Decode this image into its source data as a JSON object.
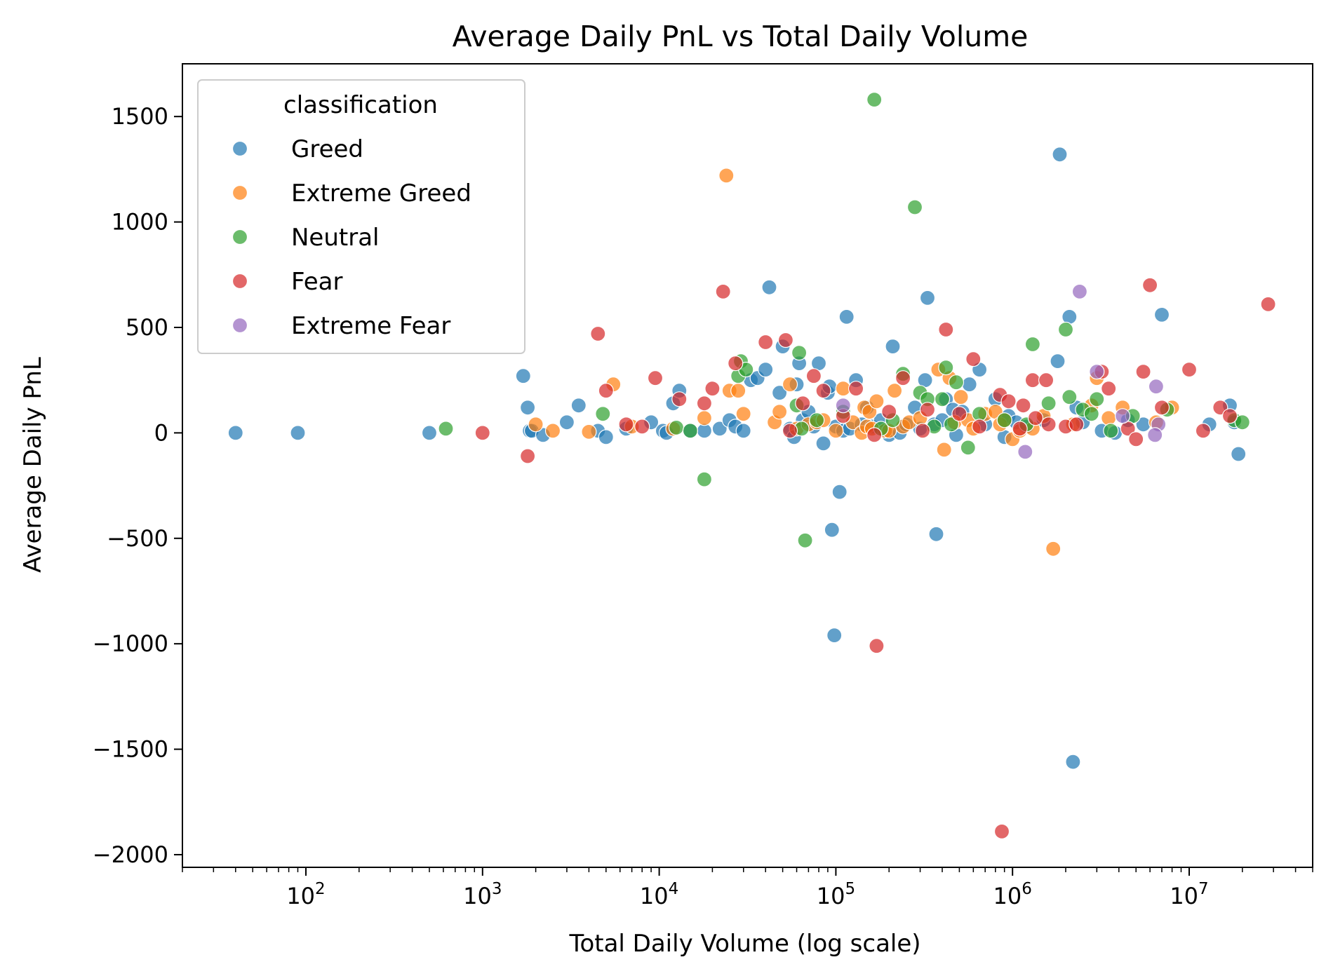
{
  "chart_data": {
    "type": "scatter",
    "title": "Average Daily PnL vs Total Daily Volume",
    "xlabel": "Total Daily Volume (log scale)",
    "ylabel": "Average Daily PnL",
    "x_scale": "log",
    "xlim": [
      20,
      50000000
    ],
    "ylim": [
      -2060,
      1750
    ],
    "x_ticks": [
      {
        "value": 100,
        "base": "10",
        "exp": "2"
      },
      {
        "value": 1000,
        "base": "10",
        "exp": "3"
      },
      {
        "value": 10000,
        "base": "10",
        "exp": "4"
      },
      {
        "value": 100000,
        "base": "10",
        "exp": "5"
      },
      {
        "value": 1000000,
        "base": "10",
        "exp": "6"
      },
      {
        "value": 10000000,
        "base": "10",
        "exp": "7"
      }
    ],
    "y_ticks": [
      {
        "value": 1500,
        "label": "1500"
      },
      {
        "value": 1000,
        "label": "1000"
      },
      {
        "value": 500,
        "label": "500"
      },
      {
        "value": 0,
        "label": "0"
      },
      {
        "value": -500,
        "label": "−500"
      },
      {
        "value": -1000,
        "label": "−1000"
      },
      {
        "value": -1500,
        "label": "−1500"
      },
      {
        "value": -2000,
        "label": "−2000"
      }
    ],
    "grid": false,
    "legend": {
      "title": "classification",
      "position": "top-left"
    },
    "series": [
      {
        "name": "Greed",
        "color": "#1f77b4",
        "points": [
          [
            40,
            0
          ],
          [
            90,
            0
          ],
          [
            500,
            0
          ],
          [
            1700,
            270
          ],
          [
            1800,
            120
          ],
          [
            1850,
            10
          ],
          [
            1900,
            10
          ],
          [
            2200,
            -10
          ],
          [
            3000,
            50
          ],
          [
            3500,
            130
          ],
          [
            4500,
            10
          ],
          [
            5000,
            -20
          ],
          [
            6500,
            20
          ],
          [
            9000,
            50
          ],
          [
            10500,
            10
          ],
          [
            11000,
            0
          ],
          [
            12000,
            140
          ],
          [
            13000,
            200
          ],
          [
            15000,
            10
          ],
          [
            18000,
            10
          ],
          [
            22000,
            20
          ],
          [
            25000,
            60
          ],
          [
            27000,
            30
          ],
          [
            30000,
            10
          ],
          [
            33000,
            250
          ],
          [
            36000,
            260
          ],
          [
            40000,
            300
          ],
          [
            42000,
            690
          ],
          [
            48000,
            190
          ],
          [
            50000,
            410
          ],
          [
            55000,
            20
          ],
          [
            58000,
            -20
          ],
          [
            60000,
            230
          ],
          [
            62000,
            330
          ],
          [
            65000,
            60
          ],
          [
            70000,
            100
          ],
          [
            75000,
            30
          ],
          [
            80000,
            330
          ],
          [
            85000,
            -50
          ],
          [
            90000,
            190
          ],
          [
            92000,
            220
          ],
          [
            95000,
            -460
          ],
          [
            98000,
            -960
          ],
          [
            100000,
            30
          ],
          [
            105000,
            -280
          ],
          [
            110000,
            10
          ],
          [
            115000,
            550
          ],
          [
            120000,
            20
          ],
          [
            130000,
            250
          ],
          [
            140000,
            40
          ],
          [
            150000,
            120
          ],
          [
            160000,
            30
          ],
          [
            180000,
            60
          ],
          [
            200000,
            -10
          ],
          [
            210000,
            410
          ],
          [
            230000,
            0
          ],
          [
            250000,
            40
          ],
          [
            280000,
            120
          ],
          [
            300000,
            20
          ],
          [
            320000,
            250
          ],
          [
            330000,
            640
          ],
          [
            360000,
            40
          ],
          [
            370000,
            -480
          ],
          [
            400000,
            60
          ],
          [
            420000,
            160
          ],
          [
            460000,
            110
          ],
          [
            480000,
            -10
          ],
          [
            520000,
            100
          ],
          [
            570000,
            230
          ],
          [
            650000,
            300
          ],
          [
            700000,
            40
          ],
          [
            800000,
            160
          ],
          [
            900000,
            -20
          ],
          [
            950000,
            80
          ],
          [
            1050000,
            50
          ],
          [
            1200000,
            30
          ],
          [
            1500000,
            60
          ],
          [
            1800000,
            340
          ],
          [
            1850000,
            1320
          ],
          [
            2100000,
            550
          ],
          [
            2200000,
            -1560
          ],
          [
            2300000,
            120
          ],
          [
            2500000,
            50
          ],
          [
            3200000,
            10
          ],
          [
            3800000,
            0
          ],
          [
            4500000,
            60
          ],
          [
            5500000,
            40
          ],
          [
            7000000,
            560
          ],
          [
            13000000,
            40
          ],
          [
            17000000,
            130
          ],
          [
            18000000,
            50
          ],
          [
            19000000,
            -100
          ]
        ]
      },
      {
        "name": "Extreme Greed",
        "color": "#ff7f0e",
        "points": [
          [
            2000,
            40
          ],
          [
            2500,
            10
          ],
          [
            4000,
            5
          ],
          [
            5500,
            230
          ],
          [
            7000,
            30
          ],
          [
            12000,
            20
          ],
          [
            18000,
            70
          ],
          [
            24000,
            1220
          ],
          [
            25000,
            200
          ],
          [
            28000,
            200
          ],
          [
            30000,
            90
          ],
          [
            45000,
            50
          ],
          [
            48000,
            100
          ],
          [
            55000,
            230
          ],
          [
            60000,
            20
          ],
          [
            70000,
            40
          ],
          [
            78000,
            50
          ],
          [
            85000,
            60
          ],
          [
            100000,
            10
          ],
          [
            110000,
            210
          ],
          [
            125000,
            50
          ],
          [
            140000,
            0
          ],
          [
            145000,
            120
          ],
          [
            150000,
            30
          ],
          [
            155000,
            100
          ],
          [
            160000,
            20
          ],
          [
            170000,
            150
          ],
          [
            190000,
            10
          ],
          [
            200000,
            10
          ],
          [
            215000,
            200
          ],
          [
            240000,
            30
          ],
          [
            260000,
            50
          ],
          [
            300000,
            70
          ],
          [
            380000,
            300
          ],
          [
            410000,
            -80
          ],
          [
            440000,
            260
          ],
          [
            470000,
            50
          ],
          [
            510000,
            170
          ],
          [
            560000,
            60
          ],
          [
            600000,
            20
          ],
          [
            700000,
            90
          ],
          [
            800000,
            100
          ],
          [
            850000,
            40
          ],
          [
            900000,
            60
          ],
          [
            1000000,
            -30
          ],
          [
            1100000,
            10
          ],
          [
            1300000,
            20
          ],
          [
            1500000,
            80
          ],
          [
            1700000,
            -550
          ],
          [
            2200000,
            40
          ],
          [
            2800000,
            130
          ],
          [
            3000000,
            260
          ],
          [
            3500000,
            70
          ],
          [
            4200000,
            120
          ],
          [
            6500000,
            50
          ],
          [
            8000000,
            120
          ]
        ]
      },
      {
        "name": "Neutral",
        "color": "#2ca02c",
        "points": [
          [
            620,
            20
          ],
          [
            4800,
            90
          ],
          [
            12500,
            25
          ],
          [
            15000,
            10
          ],
          [
            18000,
            -220
          ],
          [
            28000,
            270
          ],
          [
            29000,
            340
          ],
          [
            31000,
            300
          ],
          [
            60000,
            130
          ],
          [
            62000,
            380
          ],
          [
            64000,
            20
          ],
          [
            67000,
            -510
          ],
          [
            78000,
            60
          ],
          [
            110000,
            100
          ],
          [
            165000,
            1580
          ],
          [
            180000,
            20
          ],
          [
            210000,
            60
          ],
          [
            240000,
            280
          ],
          [
            280000,
            1070
          ],
          [
            300000,
            190
          ],
          [
            330000,
            160
          ],
          [
            360000,
            30
          ],
          [
            400000,
            160
          ],
          [
            420000,
            310
          ],
          [
            450000,
            40
          ],
          [
            480000,
            240
          ],
          [
            560000,
            -70
          ],
          [
            650000,
            90
          ],
          [
            900000,
            60
          ],
          [
            1200000,
            40
          ],
          [
            1300000,
            420
          ],
          [
            1600000,
            140
          ],
          [
            2000000,
            490
          ],
          [
            2100000,
            170
          ],
          [
            2500000,
            110
          ],
          [
            2800000,
            90
          ],
          [
            3000000,
            160
          ],
          [
            3600000,
            10
          ],
          [
            4800000,
            80
          ],
          [
            7500000,
            110
          ],
          [
            18000000,
            60
          ],
          [
            20000000,
            50
          ]
        ]
      },
      {
        "name": "Fear",
        "color": "#d62728",
        "points": [
          [
            1000,
            0
          ],
          [
            1800,
            -110
          ],
          [
            4500,
            470
          ],
          [
            5000,
            200
          ],
          [
            6500,
            40
          ],
          [
            8000,
            30
          ],
          [
            9500,
            260
          ],
          [
            13000,
            160
          ],
          [
            18000,
            140
          ],
          [
            20000,
            210
          ],
          [
            23000,
            670
          ],
          [
            27000,
            330
          ],
          [
            40000,
            430
          ],
          [
            52000,
            440
          ],
          [
            55000,
            10
          ],
          [
            65000,
            140
          ],
          [
            75000,
            270
          ],
          [
            85000,
            200
          ],
          [
            110000,
            80
          ],
          [
            130000,
            210
          ],
          [
            165000,
            -10
          ],
          [
            170000,
            -1010
          ],
          [
            200000,
            100
          ],
          [
            240000,
            260
          ],
          [
            310000,
            10
          ],
          [
            330000,
            110
          ],
          [
            420000,
            490
          ],
          [
            500000,
            90
          ],
          [
            600000,
            350
          ],
          [
            650000,
            30
          ],
          [
            850000,
            180
          ],
          [
            870000,
            -1890
          ],
          [
            950000,
            150
          ],
          [
            1100000,
            20
          ],
          [
            1150000,
            130
          ],
          [
            1300000,
            250
          ],
          [
            1350000,
            70
          ],
          [
            1550000,
            250
          ],
          [
            1600000,
            40
          ],
          [
            2000000,
            30
          ],
          [
            2300000,
            40
          ],
          [
            3200000,
            290
          ],
          [
            3500000,
            210
          ],
          [
            4500000,
            20
          ],
          [
            5000000,
            -30
          ],
          [
            5500000,
            290
          ],
          [
            6000000,
            700
          ],
          [
            7000000,
            120
          ],
          [
            10000000,
            300
          ],
          [
            12000000,
            10
          ],
          [
            15000000,
            120
          ],
          [
            17000000,
            80
          ],
          [
            28000000,
            610
          ]
        ]
      },
      {
        "name": "Extreme Fear",
        "color": "#9467bd",
        "points": [
          [
            110000,
            130
          ],
          [
            1180000,
            -90
          ],
          [
            2400000,
            670
          ],
          [
            3000000,
            290
          ],
          [
            4200000,
            80
          ],
          [
            6500000,
            220
          ],
          [
            6700000,
            40
          ],
          [
            6400000,
            -10
          ]
        ]
      }
    ]
  }
}
